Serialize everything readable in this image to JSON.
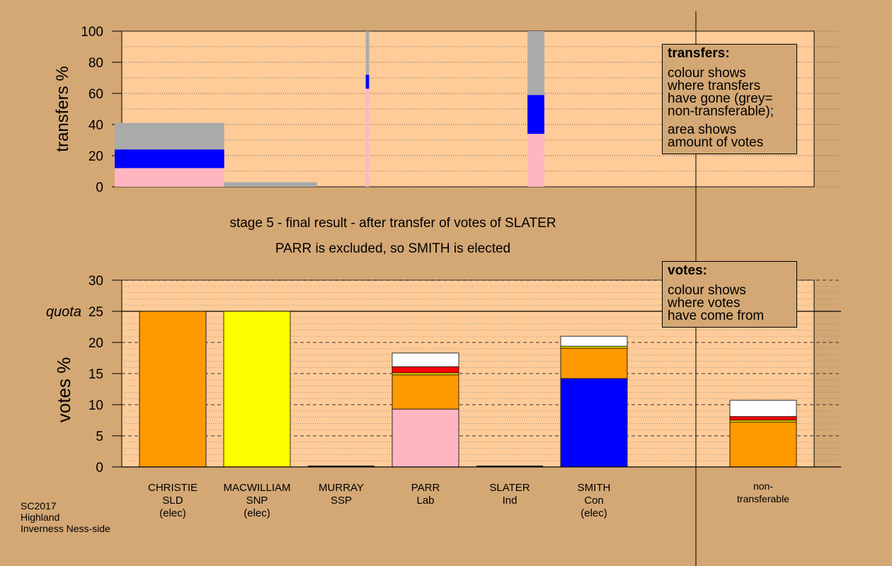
{
  "stage_title": "stage 5 - final result - after transfer of votes of SLATER",
  "stage_subtitle": "PARR is excluded, so SMITH is elected",
  "footnote": [
    "SC2017",
    "Highland",
    "Inverness Ness-side"
  ],
  "legend_transfers": {
    "title": "transfers:",
    "lines": [
      "colour shows",
      "where transfers",
      "have gone (grey=",
      "non-transferable);"
    ],
    "lines2": [
      "area shows",
      "amount of votes"
    ]
  },
  "legend_votes": {
    "title": "votes:",
    "lines": [
      "colour shows",
      "where votes",
      "have come from"
    ]
  },
  "colors": {
    "background": "#D4A875",
    "plot_area": "#FFCC99",
    "SLD": "#FF9900",
    "SNP": "#FFFF00",
    "Lab": "#FFB6C1",
    "Con": "#0000FF",
    "SSP": "#FF0000",
    "Ind": "#FFFFFF",
    "nontransferable": "#AAAAAA"
  },
  "chart_data": [
    {
      "type": "bar",
      "name": "transfers",
      "ylabel": "transfers %",
      "ylim": [
        0,
        100
      ],
      "yticks": [
        0,
        20,
        40,
        60,
        80,
        100
      ],
      "grid": true,
      "bars": [
        {
          "x_from": 0.0,
          "x_to": 1.3,
          "segments": [
            {
              "party": "Lab",
              "value": 12
            },
            {
              "party": "Con",
              "value": 12
            },
            {
              "party": "nontransferable",
              "value": 17
            }
          ]
        },
        {
          "x_from": 1.3,
          "x_to": 2.4,
          "segments": [
            {
              "party": "nontransferable",
              "value": 3
            }
          ]
        },
        {
          "x_from": 2.98,
          "x_to": 3.02,
          "segments": [
            {
              "party": "Lab",
              "value": 63
            },
            {
              "party": "Con",
              "value": 9
            },
            {
              "party": "nontransferable",
              "value": 28
            }
          ]
        },
        {
          "x_from": 4.9,
          "x_to": 5.1,
          "segments": [
            {
              "party": "Lab",
              "value": 34
            },
            {
              "party": "Con",
              "value": 25
            },
            {
              "party": "nontransferable",
              "value": 41
            }
          ]
        }
      ]
    },
    {
      "type": "bar",
      "name": "votes",
      "ylabel": "votes %",
      "ylim": [
        0,
        30
      ],
      "yticks": [
        0,
        5,
        10,
        15,
        20,
        25,
        30
      ],
      "quota": 25,
      "quota_label": "quota",
      "grid": true,
      "categories": [
        {
          "name": "CHRISTIE",
          "party": "SLD",
          "status": "(elec)"
        },
        {
          "name": "MACWILLIAM",
          "party": "SNP",
          "status": "(elec)"
        },
        {
          "name": "MURRAY",
          "party": "SSP",
          "status": ""
        },
        {
          "name": "PARR",
          "party": "Lab",
          "status": ""
        },
        {
          "name": "SLATER",
          "party": "Ind",
          "status": ""
        },
        {
          "name": "SMITH",
          "party": "Con",
          "status": "(elec)"
        },
        {
          "name": "non-",
          "party": "transferable",
          "status": ""
        }
      ],
      "stacks": [
        [
          {
            "party": "SLD",
            "value": 25
          }
        ],
        [
          {
            "party": "SNP",
            "value": 25
          }
        ],
        [],
        [
          {
            "party": "Lab",
            "value": 9.3
          },
          {
            "party": "SLD",
            "value": 5.5
          },
          {
            "party": "SNP",
            "value": 0.3
          },
          {
            "party": "SSP",
            "value": 1.0
          },
          {
            "party": "Ind",
            "value": 2.2
          }
        ],
        [],
        [
          {
            "party": "Con",
            "value": 14.2
          },
          {
            "party": "SLD",
            "value": 4.9
          },
          {
            "party": "SNP",
            "value": 0.3
          },
          {
            "party": "Ind",
            "value": 1.6
          }
        ],
        [
          {
            "party": "SLD",
            "value": 7.2
          },
          {
            "party": "SNP",
            "value": 0.3
          },
          {
            "party": "SSP",
            "value": 0.6
          },
          {
            "party": "Ind",
            "value": 2.6
          }
        ]
      ]
    }
  ]
}
